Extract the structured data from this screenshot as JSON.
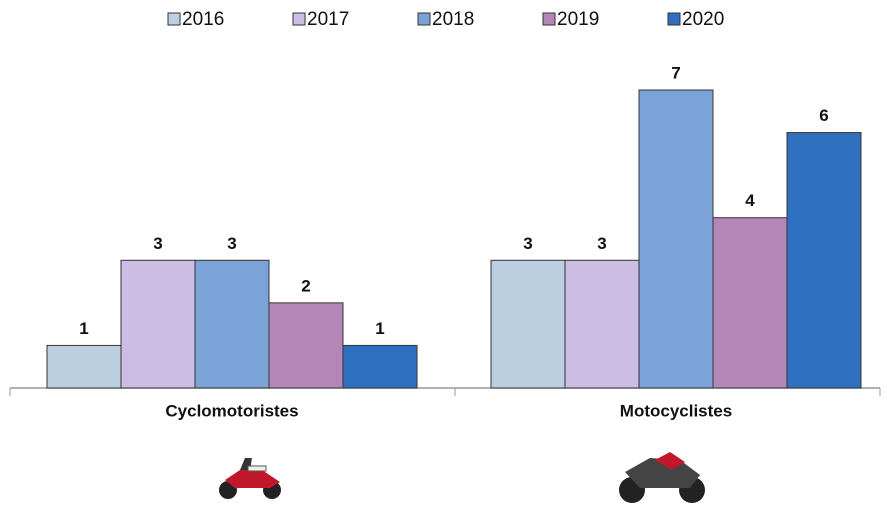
{
  "chart_data": {
    "type": "bar",
    "categories": [
      "Cyclomotoristes",
      "Motocyclistes"
    ],
    "series": [
      {
        "name": "2016",
        "color": "#bccfe0",
        "values": [
          1,
          3
        ]
      },
      {
        "name": "2017",
        "color": "#cbbde4",
        "values": [
          3,
          3
        ]
      },
      {
        "name": "2018",
        "color": "#7ba3d8",
        "values": [
          3,
          7
        ]
      },
      {
        "name": "2019",
        "color": "#b487b8",
        "values": [
          2,
          4
        ]
      },
      {
        "name": "2020",
        "color": "#2f70c0",
        "values": [
          1,
          6
        ]
      }
    ],
    "legend": "top"
  }
}
